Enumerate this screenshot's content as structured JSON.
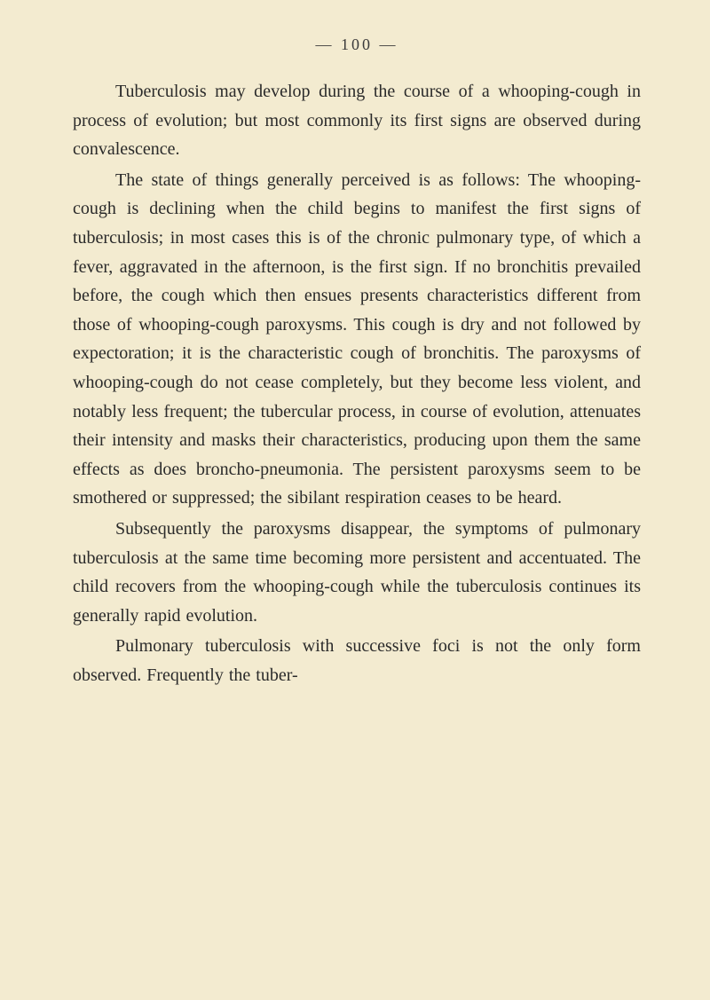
{
  "header": "— 100 —",
  "paragraphs": [
    "Tuberculosis may develop during the course of a whooping-cough in process of evolution; but most commonly its first signs are observed during convalescence.",
    "The state of things generally perceived is as follows: The whooping-cough is declining when the child begins to manifest the first signs of tuberculosis; in most cases this is of the chronic pulmonary type, of which a fever, aggravated in the afternoon, is the first sign. If no bronchitis prevailed before, the cough which then ensues presents characteristics different from those of whooping-cough paroxysms. This cough is dry and not followed by expectoration; it is the characteristic cough of bronchitis. The paroxysms of whooping-cough do not cease completely, but they become less violent, and notably less frequent; the tubercular process, in course of evolution, attenuates their intensity and masks their characteristics, producing upon them the same effects as does broncho-pneumonia. The persistent paroxysms seem to be smothered or suppressed; the sibilant respiration ceases to be heard.",
    "Subsequently the paroxysms disappear, the symptoms of pulmonary tuberculosis at the same time becoming more persistent and accentuated. The child recovers from the whooping-cough while the tuberculosis continues its generally rapid evolution.",
    "Pulmonary tuberculosis with successive foci is not the only form observed. Frequently the tuber-"
  ]
}
